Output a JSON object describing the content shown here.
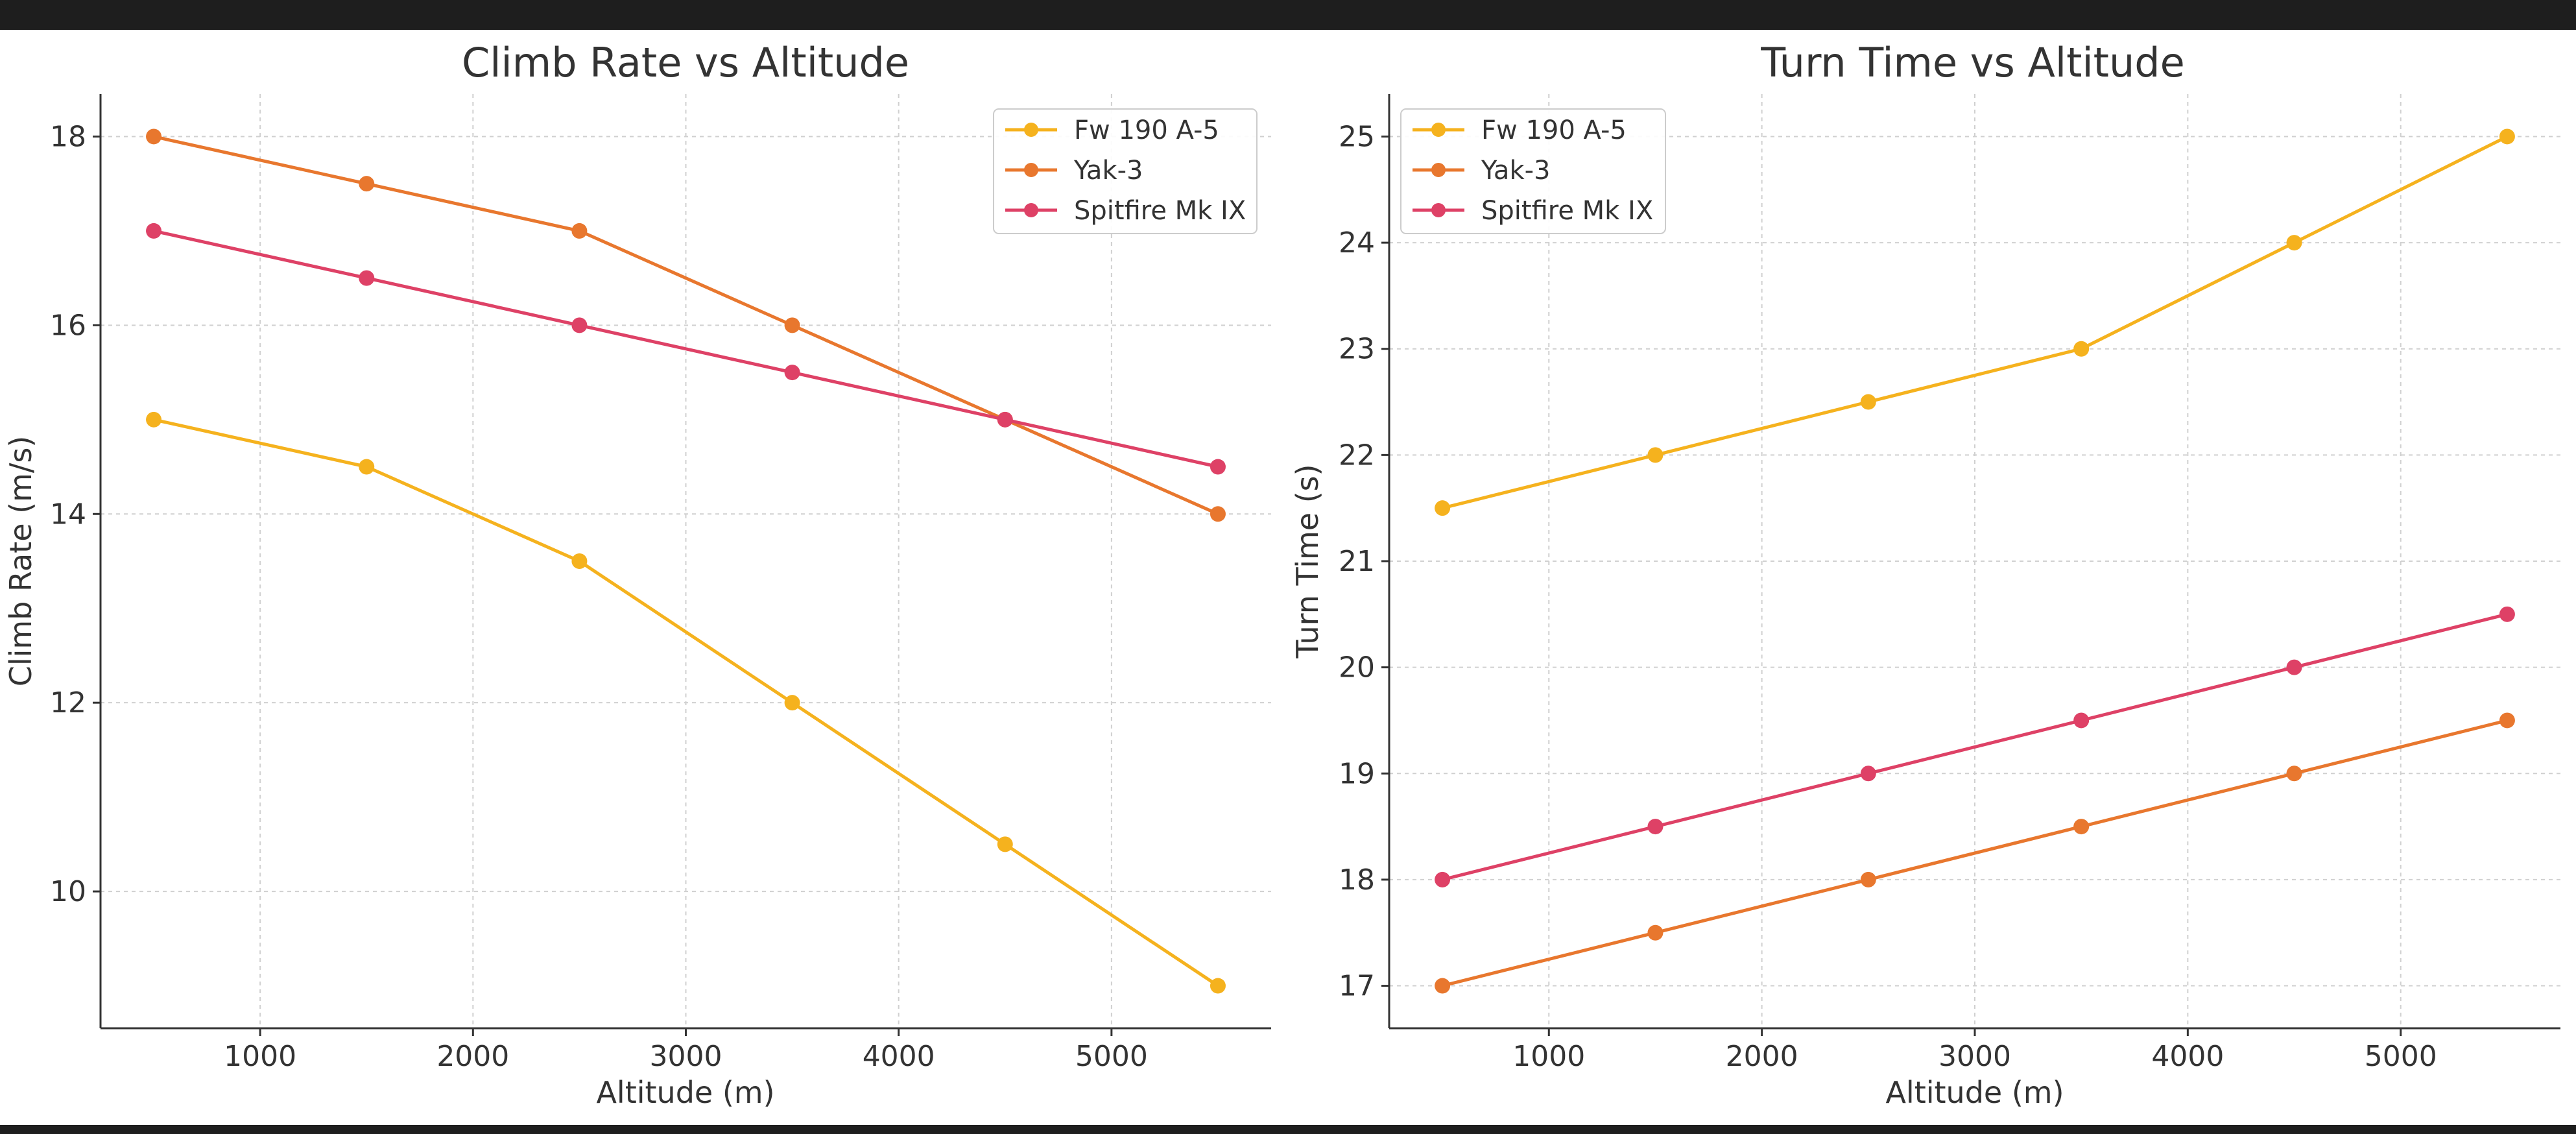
{
  "chart_data": [
    {
      "type": "line",
      "title": "Climb Rate vs Altitude",
      "xlabel": "Altitude (m)",
      "ylabel": "Climb Rate (m/s)",
      "xlim": [
        250,
        5750
      ],
      "ylim": [
        8.55,
        18.45
      ],
      "xticks": [
        1000,
        2000,
        3000,
        4000,
        5000
      ],
      "yticks": [
        10,
        12,
        14,
        16,
        18
      ],
      "grid": true,
      "legend_position": "top-right",
      "x": [
        500,
        1500,
        2500,
        3500,
        4500,
        5500
      ],
      "series": [
        {
          "name": "Fw 190 A-5",
          "color": "#F5B21E",
          "values": [
            15,
            14.5,
            13.5,
            12,
            10.5,
            9
          ]
        },
        {
          "name": "Yak-3",
          "color": "#E8772E",
          "values": [
            18,
            17.5,
            17,
            16,
            15,
            14
          ]
        },
        {
          "name": "Spitfire Mk IX",
          "color": "#DE4166",
          "values": [
            17,
            16.5,
            16,
            15.5,
            15,
            14.5
          ]
        }
      ]
    },
    {
      "type": "line",
      "title": "Turn Time vs Altitude",
      "xlabel": "Altitude (m)",
      "ylabel": "Turn Time (s)",
      "xlim": [
        250,
        5750
      ],
      "ylim": [
        16.6,
        25.4
      ],
      "xticks": [
        1000,
        2000,
        3000,
        4000,
        5000
      ],
      "yticks": [
        17,
        18,
        19,
        20,
        21,
        22,
        23,
        24,
        25
      ],
      "grid": true,
      "legend_position": "top-left",
      "x": [
        500,
        1500,
        2500,
        3500,
        4500,
        5500
      ],
      "series": [
        {
          "name": "Fw 190 A-5",
          "color": "#F5B21E",
          "values": [
            21.5,
            22,
            22.5,
            23,
            24,
            25
          ]
        },
        {
          "name": "Yak-3",
          "color": "#E8772E",
          "values": [
            17,
            17.5,
            18,
            18.5,
            19,
            19.5
          ]
        },
        {
          "name": "Spitfire Mk IX",
          "color": "#DE4166",
          "values": [
            18,
            18.5,
            19,
            19.5,
            20,
            20.5
          ]
        }
      ]
    }
  ]
}
